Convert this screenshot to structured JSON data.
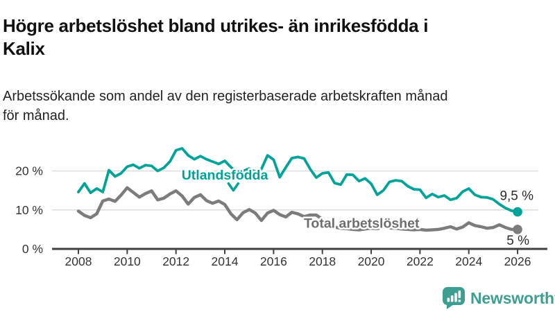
{
  "page": {
    "title": "Högre arbetslöshet bland utrikes- än inrikesfödda i Kalix",
    "title_lines": [
      "Högre arbetslöshet bland utrikes- än inrikesfödda i",
      "Kalix"
    ],
    "subtitle": "Arbetssökande som andel av den registerbaserade arbetskraften månad för månad.",
    "subtitle_lines": [
      "Arbetssökande som andel av den registerbaserade arbetskraften månad",
      "för månad."
    ]
  },
  "branding": {
    "name": "Newsworthy",
    "color": "#3f9e92"
  },
  "colors": {
    "accent_teal": "#00a399",
    "series_gray": "#7c7c7c",
    "axis_text": "#333333",
    "axis_line": "#404040",
    "gridline": "#d8d8d8",
    "end_label_text": "#2b2b2b"
  },
  "chart_data": {
    "type": "line",
    "title": "Högre arbetslöshet bland utrikes- än inrikesfödda i Kalix",
    "subtitle": "Arbetssökande som andel av den registerbaserade arbetskraften månad för månad.",
    "unit": "%",
    "grid": "horizontal",
    "legend_position": "inline-annotations",
    "xlim": [
      2008,
      2026.3
    ],
    "ylim": [
      0,
      27
    ],
    "x_start": 2008,
    "x_step": 0.25,
    "x_ticks": [
      2008,
      2010,
      2012,
      2014,
      2016,
      2018,
      2020,
      2022,
      2024,
      2026
    ],
    "y_ticks": [
      {
        "value": 0,
        "label": "0 %"
      },
      {
        "value": 10,
        "label": "10 %"
      },
      {
        "value": 20,
        "label": "20 %"
      }
    ],
    "series": [
      {
        "id": "utlandsfodda",
        "name": "Utlandsfödda",
        "color": "#00a399",
        "end_label": "9,5 %",
        "end_value": 9.5,
        "values": [
          14.6,
          16.8,
          14.4,
          15.5,
          14.6,
          20.2,
          18.6,
          19.4,
          21.1,
          21.6,
          20.7,
          21.5,
          21.3,
          20.0,
          20.8,
          22.4,
          25.3,
          25.8,
          24.0,
          23.0,
          23.8,
          23.0,
          22.4,
          21.8,
          22.6,
          21.0,
          19.6,
          20.0,
          20.6,
          19.8,
          20.5,
          24.0,
          22.9,
          18.4,
          20.9,
          23.3,
          23.6,
          23.2,
          20.5,
          18.3,
          19.4,
          19.6,
          16.9,
          16.5,
          19.1,
          19.0,
          17.4,
          18.1,
          16.7,
          13.9,
          15.0,
          17.2,
          17.6,
          17.4,
          16.1,
          15.3,
          15.2,
          13.1,
          14.1,
          13.3,
          13.7,
          12.6,
          13.0,
          14.7,
          15.5,
          13.9,
          13.3,
          13.2,
          12.7,
          11.5,
          10.5,
          9.8,
          9.5
        ]
      },
      {
        "id": "total-arbetsloshet",
        "name": "Total arbetslöshet",
        "color": "#7c7c7c",
        "end_label": "5 %",
        "end_value": 5,
        "values": [
          9.7,
          8.6,
          8.0,
          9.0,
          12.3,
          12.8,
          12.2,
          13.8,
          15.7,
          14.5,
          13.3,
          14.2,
          14.9,
          12.6,
          13.0,
          14.1,
          14.9,
          13.6,
          11.5,
          13.2,
          13.9,
          12.4,
          11.7,
          12.3,
          11.4,
          9.0,
          7.5,
          9.3,
          10.1,
          9.2,
          7.3,
          9.2,
          9.9,
          8.8,
          8.2,
          9.4,
          9.0,
          8.3,
          8.7,
          8.7,
          7.6,
          6.3,
          5.6,
          5.3,
          5.2,
          5.0,
          4.9,
          5.1,
          5.3,
          5.2,
          5.6,
          5.4,
          5.3,
          5.1,
          5.0,
          4.9,
          5.0,
          4.8,
          4.9,
          5.0,
          5.3,
          5.7,
          5.1,
          5.6,
          6.7,
          6.0,
          5.7,
          5.3,
          5.5,
          6.2,
          5.5,
          5.0,
          5.0
        ]
      }
    ],
    "annotations": [
      {
        "text": "Utlandsfödda",
        "x": 2014.0,
        "y": 19.0,
        "color": "#00a399",
        "anchor": "middle",
        "chevron": {
          "x": 2014.35,
          "y": 15.9
        }
      },
      {
        "text": "Total arbetslöshet",
        "x": 2017.24,
        "y": 6.67,
        "color": "#6e6e6e",
        "anchor": "start"
      }
    ]
  }
}
